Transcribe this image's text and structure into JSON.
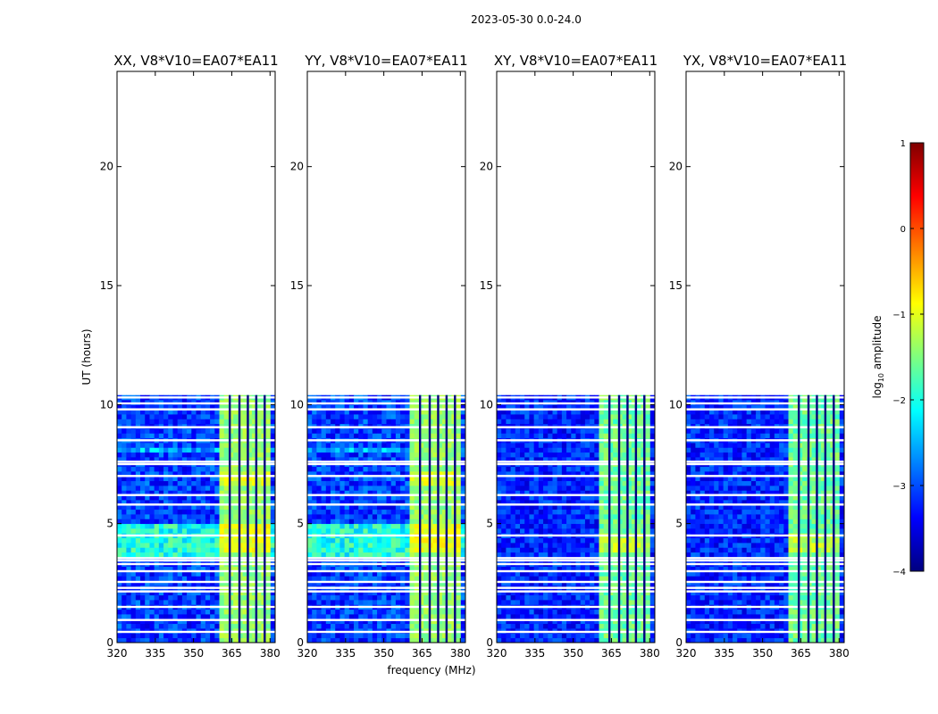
{
  "chart_data": {
    "type": "heatmap",
    "suptitle": "2023-05-30 0.0-24.0",
    "xlabel": "frequency (MHz)",
    "ylabel": "UT (hours)",
    "xlim": [
      320,
      382
    ],
    "ylim": [
      0,
      24
    ],
    "x_ticks": [
      320,
      335,
      350,
      365,
      380
    ],
    "y_ticks": [
      0,
      5,
      10,
      15,
      20
    ],
    "panels": [
      {
        "title": "XX, V8*V10=EA07*EA11",
        "mode": "parallel"
      },
      {
        "title": "YY, V8*V10=EA07*EA11",
        "mode": "parallel"
      },
      {
        "title": "XY, V8*V10=EA07*EA11",
        "mode": "cross"
      },
      {
        "title": "YX, V8*V10=EA07*EA11",
        "mode": "cross"
      }
    ],
    "data_end_hour": 10.4,
    "bright_band_mhz": [
      360.5,
      379.5
    ],
    "flagged_freq_mhz": [
      364.2,
      368.0,
      371.3,
      374.6,
      377.9
    ],
    "flagged_times_hours": [
      0.45,
      0.95,
      1.5,
      2.15,
      2.3,
      2.55,
      3.0,
      3.3,
      3.45,
      3.55,
      4.5,
      5.8,
      6.2,
      7.0,
      7.5,
      7.6,
      8.5,
      9.05,
      9.8,
      10.05,
      10.3
    ],
    "colorbar": {
      "label": "log10 amplitude",
      "label_text": "log",
      "label_sub": "10",
      "label_rest": " amplitude",
      "min": -4,
      "max": 1,
      "ticks": [
        -4,
        -3,
        -2,
        -1,
        0,
        1
      ],
      "tick_labels": [
        "−4",
        "−3",
        "−2",
        "−1",
        "0",
        "1"
      ],
      "colormap": "jet"
    }
  }
}
